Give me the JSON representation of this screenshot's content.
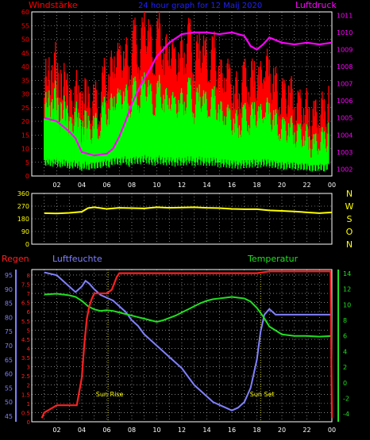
{
  "colors": {
    "background": "#000000",
    "axis": "#ffffff",
    "grid": "#ffffff",
    "wind_gust": "#ff0000",
    "wind_avg": "#00ff00",
    "pressure": "#ff00ff",
    "wind_dir": "#ffff00",
    "rain": "#ff2020",
    "humidity": "#8080ff",
    "temperature": "#20e020",
    "title_blue": "#2020ff",
    "tick_left_top": "#ff0000",
    "tick_right_top": "#ff00ff",
    "tick_dir": "#ffff00",
    "compass": "#ffff00",
    "rain_ticks": "#ff2020",
    "hum_ticks": "#8080ff",
    "temp_ticks": "#20e020",
    "sun": "#ffff00"
  },
  "chart_data": [
    {
      "type": "line",
      "title": "24 hour graph for 12 Maij 2020",
      "left_label": "Windstärke",
      "right_label": "Luftdruck",
      "x_ticks": [
        "02",
        "04",
        "06",
        "08",
        "10",
        "12",
        "14",
        "16",
        "18",
        "20",
        "22",
        "00"
      ],
      "y_left_ticks": [
        "0",
        "5",
        "10",
        "15",
        "20",
        "25",
        "30",
        "35",
        "40",
        "45",
        "50",
        "55",
        "60"
      ],
      "y_left_range": [
        0,
        60
      ],
      "y_right_ticks": [
        "1002",
        "1003",
        "1004",
        "1005",
        "1006",
        "1007",
        "1008",
        "1009",
        "1010",
        "1011"
      ],
      "y_right_range": [
        1001.6,
        1011.2
      ],
      "grid": true,
      "series": [
        {
          "name": "Windstärke",
          "kind": "gust",
          "x": [
            1,
            1.3,
            1.6,
            1.9,
            2.2,
            2.5,
            2.8,
            3.1,
            3.5,
            3.8,
            4.0,
            4.3,
            4.6,
            5.0,
            5.4,
            5.8,
            6.2,
            6.6,
            7.0,
            7.4,
            7.8,
            8.2,
            8.6,
            9.0,
            9.4,
            9.8,
            10.2,
            10.6,
            11.0,
            11.4,
            11.8,
            12.2,
            12.6,
            13.0,
            13.4,
            13.8,
            14.2,
            14.6,
            15.0,
            15.4,
            15.8,
            16.2,
            16.6,
            17.0,
            17.4,
            17.8,
            18.2,
            18.6,
            19.0,
            19.4,
            19.8,
            20.2,
            20.6,
            21.0,
            21.4,
            21.8,
            22.2,
            22.6,
            23.0,
            23.4,
            23.8
          ],
          "values": [
            30,
            34,
            28,
            38,
            26,
            32,
            28,
            20,
            30,
            22,
            18,
            26,
            20,
            24,
            22,
            32,
            30,
            42,
            36,
            44,
            34,
            48,
            40,
            52,
            46,
            40,
            50,
            38,
            46,
            36,
            42,
            40,
            48,
            36,
            44,
            40,
            38,
            42,
            30,
            36,
            30,
            28,
            26,
            32,
            30,
            34,
            28,
            40,
            32,
            30,
            26,
            24,
            28,
            22,
            20,
            24,
            18,
            16,
            22,
            18,
            24
          ]
        },
        {
          "name": "Windstärke",
          "kind": "avg",
          "x": [
            1,
            1.3,
            1.6,
            1.9,
            2.2,
            2.5,
            2.8,
            3.1,
            3.5,
            3.8,
            4.0,
            4.3,
            4.6,
            5.0,
            5.4,
            5.8,
            6.2,
            6.6,
            7.0,
            7.4,
            7.8,
            8.2,
            8.6,
            9.0,
            9.4,
            9.8,
            10.2,
            10.6,
            11.0,
            11.4,
            11.8,
            12.2,
            12.6,
            13.0,
            13.4,
            13.8,
            14.2,
            14.6,
            15.0,
            15.4,
            15.8,
            16.2,
            16.6,
            17.0,
            17.4,
            17.8,
            18.2,
            18.6,
            19.0,
            19.4,
            19.8,
            20.2,
            20.6,
            21.0,
            21.4,
            21.8,
            22.2,
            22.6,
            23.0,
            23.4,
            23.8
          ],
          "values": [
            22,
            26,
            20,
            28,
            18,
            24,
            20,
            14,
            22,
            16,
            12,
            18,
            14,
            16,
            16,
            22,
            20,
            28,
            24,
            30,
            22,
            30,
            26,
            32,
            28,
            24,
            30,
            24,
            28,
            22,
            26,
            24,
            30,
            22,
            28,
            24,
            24,
            26,
            20,
            22,
            18,
            18,
            16,
            20,
            18,
            22,
            18,
            24,
            20,
            18,
            16,
            14,
            16,
            14,
            12,
            14,
            10,
            8,
            12,
            10,
            14
          ]
        },
        {
          "name": "Luftdruck",
          "kind": "pressure",
          "x": [
            1,
            2,
            3,
            3.5,
            4,
            5,
            6,
            6.5,
            7,
            7.5,
            8,
            8.5,
            9,
            9.5,
            10,
            11,
            12,
            13,
            14,
            15,
            16,
            17,
            17.5,
            18,
            18.5,
            19,
            20,
            21,
            22,
            23,
            24
          ],
          "values": [
            1005.0,
            1004.8,
            1004.2,
            1003.8,
            1003.0,
            1002.8,
            1002.9,
            1003.2,
            1003.9,
            1004.8,
            1005.8,
            1006.6,
            1007.3,
            1007.9,
            1008.6,
            1009.4,
            1009.9,
            1010.0,
            1010.0,
            1009.9,
            1010.0,
            1009.8,
            1009.2,
            1009.0,
            1009.3,
            1009.7,
            1009.4,
            1009.3,
            1009.4,
            1009.3,
            1009.4
          ]
        }
      ]
    },
    {
      "type": "line",
      "left_ticks": [
        "0",
        "90",
        "180",
        "270",
        "360"
      ],
      "y_range": [
        0,
        360
      ],
      "compass": [
        "N",
        "W",
        "S",
        "O",
        "N"
      ],
      "grid": true,
      "series": [
        {
          "name": "Windrichtung",
          "x": [
            1,
            2,
            3,
            4,
            4.5,
            5,
            6,
            7,
            8,
            9,
            10,
            11,
            12,
            13,
            14,
            15,
            16,
            17,
            18,
            19,
            20,
            21,
            22,
            23,
            24
          ],
          "values": [
            220,
            218,
            222,
            230,
            256,
            262,
            250,
            258,
            256,
            254,
            262,
            258,
            260,
            262,
            258,
            256,
            250,
            248,
            248,
            240,
            236,
            232,
            226,
            220,
            226
          ]
        }
      ]
    },
    {
      "type": "line",
      "left_title": "Regen",
      "middle_title": "Luftfeuchte",
      "right_title": "Temperatur",
      "x_ticks": [
        "02",
        "04",
        "06",
        "08",
        "10",
        "12",
        "14",
        "16",
        "18",
        "20",
        "22",
        "00"
      ],
      "rain_ticks": [
        "0",
        "0.5",
        "1",
        "1.5",
        "2",
        "2.5",
        "3",
        "3.5",
        "4",
        "4.5",
        "5",
        "5.5",
        "6",
        "6.5",
        "7",
        "7.5",
        "8"
      ],
      "rain_range": [
        0,
        8.3
      ],
      "humidity_ticks": [
        "45",
        "50",
        "55",
        "60",
        "65",
        "70",
        "75",
        "80",
        "85",
        "90",
        "95"
      ],
      "humidity_range": [
        43,
        97
      ],
      "temperature_ticks": [
        "-4",
        "-2",
        "0",
        "2",
        "4",
        "6",
        "8",
        "10",
        "12",
        "14"
      ],
      "temperature_range": [
        -5,
        14.5
      ],
      "grid": true,
      "annotations": [
        {
          "label": "Sun Rise",
          "x": 6.1
        },
        {
          "label": "Sun Set",
          "x": 18.3
        }
      ],
      "series": [
        {
          "name": "Regen",
          "x": [
            0.8,
            1.0,
            1.5,
            2.0,
            3.0,
            3.6,
            4.0,
            4.2,
            4.4,
            4.6,
            4.8,
            5.0,
            5.5,
            6.0,
            6.4,
            6.8,
            7.0,
            8,
            10,
            12,
            14,
            16,
            18,
            19,
            20,
            22,
            23.9,
            24.0
          ],
          "values": [
            0.2,
            0.5,
            0.7,
            0.9,
            0.9,
            0.9,
            2.4,
            4.2,
            5.6,
            6.3,
            6.7,
            7.0,
            7.0,
            7.0,
            7.2,
            7.9,
            8.1,
            8.1,
            8.1,
            8.1,
            8.1,
            8.1,
            8.1,
            8.2,
            8.2,
            8.2,
            8.2,
            0.2
          ]
        },
        {
          "name": "Luftfeuchte",
          "x": [
            1,
            2,
            2.5,
            3,
            3.5,
            4,
            4.3,
            4.6,
            5,
            5.5,
            6,
            6.5,
            7,
            7.5,
            8,
            8.5,
            9,
            9.5,
            10,
            10.5,
            11,
            11.5,
            12,
            12.5,
            13,
            13.5,
            14,
            14.5,
            15,
            15.5,
            16,
            16.5,
            17,
            17.5,
            18,
            18.3,
            18.6,
            19,
            19.5,
            20,
            21,
            22,
            23,
            24
          ],
          "values": [
            96,
            95,
            93,
            91,
            89,
            91,
            93,
            92,
            90,
            88,
            87,
            86,
            84,
            82,
            79,
            77,
            74,
            72,
            70,
            68,
            66,
            64,
            62,
            59,
            56,
            54,
            52,
            50,
            49,
            48,
            47,
            48,
            50,
            55,
            65,
            75,
            81,
            83,
            81,
            81,
            81,
            81,
            81,
            81
          ]
        },
        {
          "name": "Temperatur",
          "x": [
            1,
            2,
            3,
            3.5,
            4,
            4.5,
            5,
            5.5,
            6,
            6.5,
            7,
            7.5,
            8,
            8.5,
            9,
            9.5,
            10,
            10.5,
            11,
            11.5,
            12,
            12.5,
            13,
            13.5,
            14,
            14.5,
            15,
            15.5,
            16,
            16.5,
            17,
            17.5,
            18,
            18.5,
            19,
            20,
            21,
            22,
            23,
            24
          ],
          "values": [
            11.3,
            11.4,
            11.2,
            11.0,
            10.5,
            9.8,
            9.4,
            9.2,
            9.3,
            9.2,
            9.0,
            8.8,
            8.6,
            8.4,
            8.2,
            8.0,
            7.8,
            8.0,
            8.3,
            8.6,
            9.0,
            9.4,
            9.8,
            10.2,
            10.5,
            10.7,
            10.8,
            10.9,
            11.0,
            10.9,
            10.8,
            10.4,
            9.6,
            8.5,
            7.2,
            6.2,
            6.0,
            6.0,
            5.9,
            6.0
          ]
        }
      ]
    }
  ]
}
